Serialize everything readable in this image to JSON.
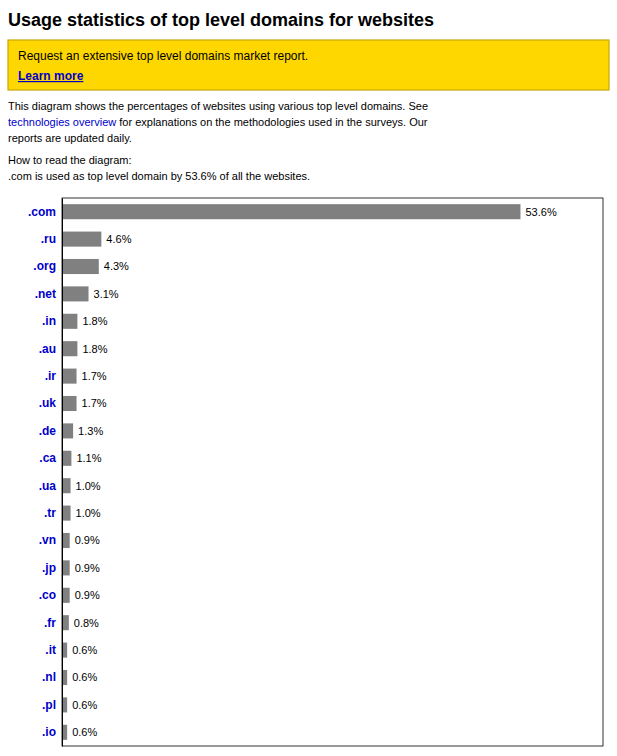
{
  "chart_data": {
    "type": "bar",
    "orientation": "horizontal",
    "title": "Usage statistics of top level domains for websites",
    "annotations": [
      "Request an extensive top level domains market report.",
      "Learn more",
      "This diagram shows the percentages of websites using various top level domains. See",
      "technologies overview",
      " for explanations on the methodologies used in the surveys. Our",
      "reports are updated daily.",
      "How to read the diagram:",
      ".com is used as top level domain by 53.6% of all the websites."
    ],
    "categories": [
      ".com",
      ".ru",
      ".org",
      ".net",
      ".in",
      ".au",
      ".ir",
      ".uk",
      ".de",
      ".ca",
      ".ua",
      ".tr",
      ".vn",
      ".jp",
      ".co",
      ".fr",
      ".it",
      ".nl",
      ".pl",
      ".io"
    ],
    "values": [
      53.6,
      4.6,
      4.3,
      3.1,
      1.8,
      1.8,
      1.7,
      1.7,
      1.3,
      1.1,
      1.0,
      1.0,
      0.9,
      0.9,
      0.9,
      0.8,
      0.6,
      0.6,
      0.6,
      0.6
    ],
    "value_labels": [
      "53.6%",
      "4.6%",
      "4.3%",
      "3.1%",
      "1.8%",
      "1.8%",
      "1.7%",
      "1.7%",
      "1.3%",
      "1.1%",
      "1.0%",
      "1.0%",
      "0.9%",
      "0.9%",
      "0.9%",
      "0.8%",
      "0.6%",
      "0.6%",
      "0.6%",
      "0.6%"
    ],
    "color": "#808080",
    "xlim": [
      0,
      63.248
    ],
    "data_labels": true,
    "tick_labels": "y",
    "grid": false
  }
}
